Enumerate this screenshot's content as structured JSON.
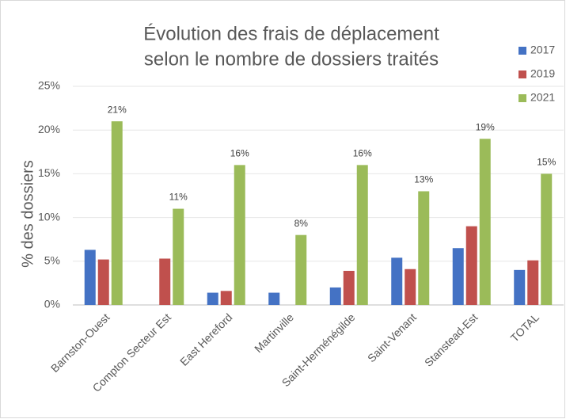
{
  "chart_data": {
    "type": "bar",
    "title": [
      "Évolution des frais de déplacement",
      "selon le nombre de dossiers traités"
    ],
    "y_label": "% des dossiers",
    "categories": [
      "Barnston-Ouest",
      "Compton Secteur Est",
      "East Hereford",
      "Martinville",
      "Saint-Herménégilde",
      "Saint-Venant",
      "Stanstead-Est",
      "TOTAL"
    ],
    "series": [
      {
        "name": "2017",
        "color": "#4472c4",
        "values": [
          6.3,
          null,
          1.4,
          1.4,
          2.0,
          5.4,
          6.5,
          4.0
        ]
      },
      {
        "name": "2019",
        "color": "#c0504d",
        "values": [
          5.2,
          5.3,
          1.6,
          null,
          3.9,
          4.1,
          9.0,
          5.1
        ]
      },
      {
        "name": "2021",
        "color": "#9bbb59",
        "values": [
          21,
          11,
          16,
          8,
          16,
          13,
          19,
          15
        ],
        "value_labels": [
          "21%",
          "11%",
          "16%",
          "8%",
          "16%",
          "13%",
          "19%",
          "15%"
        ]
      }
    ],
    "ylim": [
      0,
      25
    ],
    "yticks": [
      {
        "value": 0,
        "label": "0%"
      },
      {
        "value": 5,
        "label": "5%"
      },
      {
        "value": 10,
        "label": "10%"
      },
      {
        "value": 15,
        "label": "15%"
      },
      {
        "value": 20,
        "label": "20%"
      },
      {
        "value": 25,
        "label": "25%"
      }
    ],
    "grid": true,
    "legend": "right"
  }
}
